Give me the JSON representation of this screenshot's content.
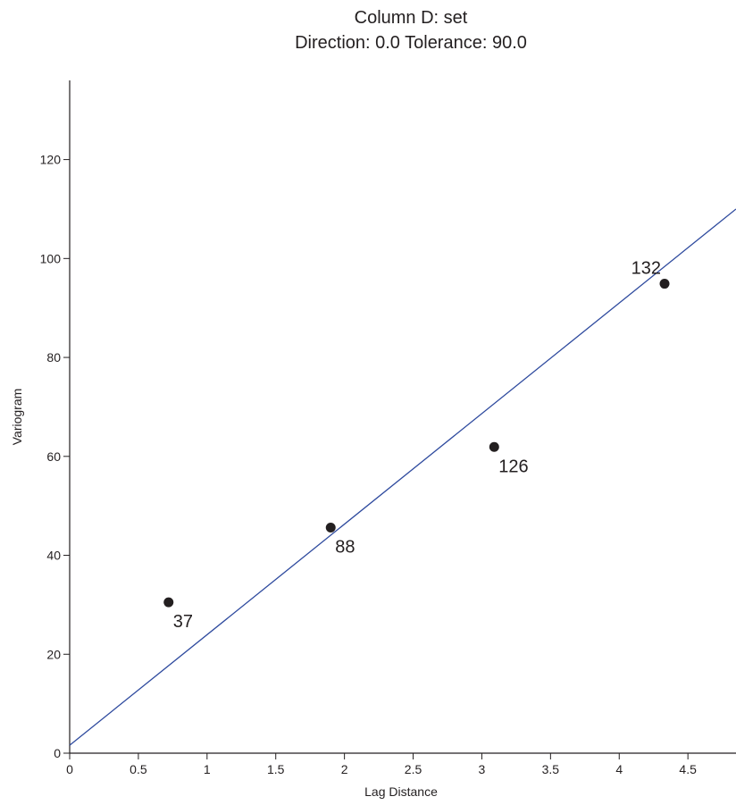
{
  "chart_data": {
    "type": "scatter",
    "title": "Column D:  set",
    "subtitle": "Direction: 0.0   Tolerance: 90.0",
    "xlabel": "Lag Distance",
    "ylabel": "Variogram",
    "xlim": [
      0,
      4.85
    ],
    "ylim": [
      0,
      136
    ],
    "xticks": [
      0,
      0.5,
      1,
      1.5,
      2,
      2.5,
      3,
      3.5,
      4,
      4.5
    ],
    "xtick_labels": [
      "0",
      "0.5",
      "1",
      "1.5",
      "2",
      "2.5",
      "3",
      "3.5",
      "4",
      "4.5"
    ],
    "yticks": [
      0,
      20,
      40,
      60,
      80,
      100,
      120
    ],
    "ytick_labels": [
      "0",
      "20",
      "40",
      "60",
      "80",
      "100",
      "120"
    ],
    "points": [
      {
        "x": 0.72,
        "y": 30.5,
        "label": "37"
      },
      {
        "x": 1.9,
        "y": 45.6,
        "label": "88"
      },
      {
        "x": 3.09,
        "y": 61.9,
        "label": "126"
      },
      {
        "x": 4.33,
        "y": 94.9,
        "label": "132"
      }
    ],
    "model_line": {
      "x": [
        0,
        4.85
      ],
      "y": [
        1.6,
        110.0
      ]
    },
    "colors": {
      "points": "#231f20",
      "line": "#2e4a9e",
      "axes": "#231f20"
    },
    "grid": false,
    "legend": "none"
  }
}
